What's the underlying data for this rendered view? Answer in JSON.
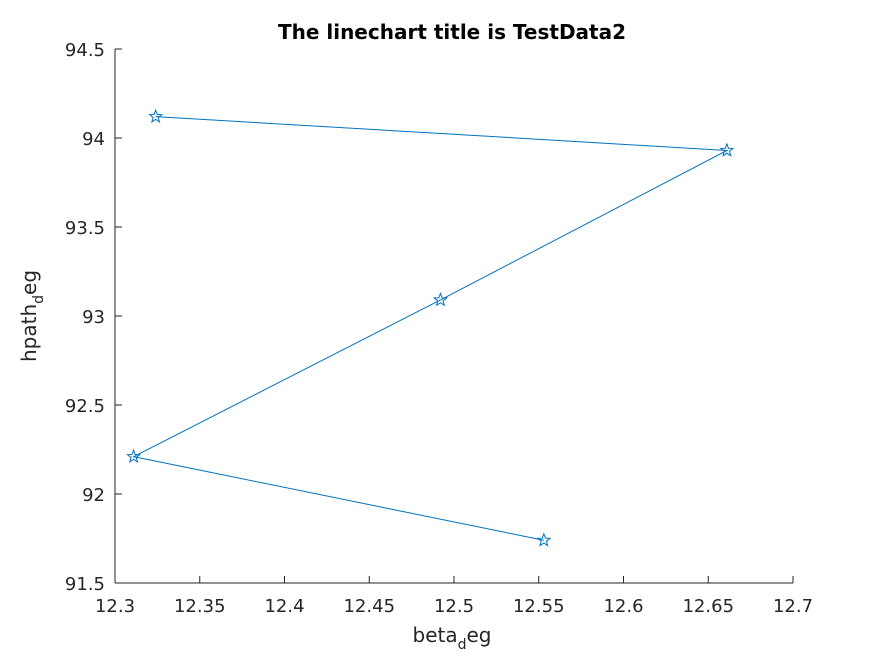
{
  "chart_data": {
    "type": "line",
    "title": "The linechart title is TestData2",
    "xlabel": {
      "base": "beta",
      "sub": "d",
      "rest": "eg"
    },
    "ylabel": {
      "base": "hpath",
      "sub": "d",
      "rest": "eg"
    },
    "xlim": [
      12.3,
      12.7
    ],
    "ylim": [
      91.5,
      94.5
    ],
    "xticks": [
      12.3,
      12.35,
      12.4,
      12.45,
      12.5,
      12.55,
      12.6,
      12.65,
      12.7
    ],
    "xtick_labels": [
      "12.3",
      "12.35",
      "12.4",
      "12.45",
      "12.5",
      "12.55",
      "12.6",
      "12.65",
      "12.7"
    ],
    "yticks": [
      91.5,
      92,
      92.5,
      93,
      93.5,
      94,
      94.5
    ],
    "ytick_labels": [
      "91.5",
      "92",
      "92.5",
      "93",
      "93.5",
      "94",
      "94.5"
    ],
    "grid": false,
    "series": [
      {
        "name": "TestData2",
        "marker": "star",
        "color": "#0072BD",
        "x": [
          12.553,
          12.311,
          12.492,
          12.661,
          12.324
        ],
        "y": [
          91.74,
          92.21,
          93.09,
          93.93,
          94.12
        ]
      }
    ]
  }
}
